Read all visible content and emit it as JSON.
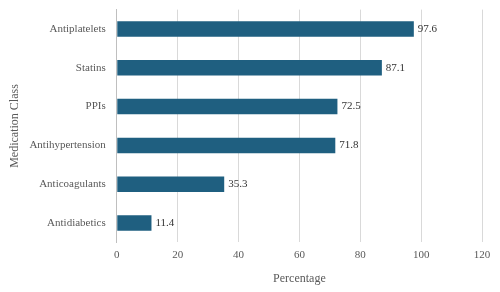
{
  "chart_data": {
    "type": "bar",
    "orientation": "horizontal",
    "x_label": "Percentage",
    "y_label": "Medication Class",
    "categories": [
      "Antiplatelets",
      "Statins",
      "PPIs",
      "Antihypertension",
      "Anticoagulants",
      "Antidiabetics"
    ],
    "values": [
      97.6,
      87.1,
      72.5,
      71.8,
      35.3,
      11.4
    ],
    "color": "#1f5f80",
    "xlim": [
      0,
      120
    ],
    "xticks": [
      0,
      20,
      40,
      60,
      80,
      100,
      120
    ],
    "grid": true,
    "data_labels": true,
    "legend": null
  }
}
